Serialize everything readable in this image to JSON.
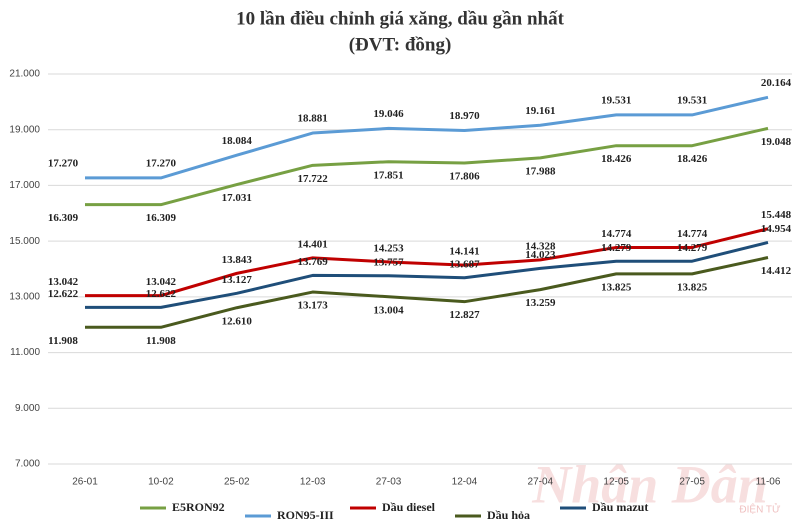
{
  "chart_data": {
    "type": "line",
    "title": "10 lần điều chỉnh giá xăng, dầu gần nhất",
    "subtitle": "(ĐVT: đồng)",
    "watermark": "Nhân Dân",
    "watermark_sub": "ĐIỆN TỬ",
    "categories": [
      "26-01",
      "10-02",
      "25-02",
      "12-03",
      "27-03",
      "12-04",
      "27-04",
      "12-05",
      "27-05",
      "11-06"
    ],
    "ylim": [
      7000,
      21000
    ],
    "yticks": [
      {
        "value": 7000,
        "label": "7.000"
      },
      {
        "value": 9000,
        "label": "9.000"
      },
      {
        "value": 11000,
        "label": "11.000"
      },
      {
        "value": 13000,
        "label": "13.000"
      },
      {
        "value": 15000,
        "label": "15.000"
      },
      {
        "value": 17000,
        "label": "17.000"
      },
      {
        "value": 19000,
        "label": "19.000"
      },
      {
        "value": 21000,
        "label": "21.000"
      }
    ],
    "grid": true,
    "legend": "bottom",
    "series": [
      {
        "name": "E5RON92",
        "color": "#77a043",
        "values": [
          16309,
          16309,
          17031,
          17722,
          17851,
          17806,
          17988,
          18426,
          18426,
          19048
        ],
        "value_labels": [
          "16.309",
          "16.309",
          "17.031",
          "17.722",
          "17.851",
          "17.806",
          "17.988",
          "18.426",
          "18.426",
          "19.048"
        ]
      },
      {
        "name": "RON95-III",
        "color": "#5b9bd5",
        "values": [
          17270,
          17270,
          18084,
          18881,
          19046,
          18970,
          19161,
          19531,
          19531,
          20164
        ],
        "value_labels": [
          "17.270",
          "17.270",
          "18.084",
          "18.881",
          "19.046",
          "18.970",
          "19.161",
          "19.531",
          "19.531",
          "20.164"
        ]
      },
      {
        "name": "Dầu diesel",
        "color": "#c00000",
        "values": [
          13042,
          13042,
          13843,
          14401,
          14253,
          14141,
          14328,
          14774,
          14774,
          15448
        ],
        "value_labels": [
          "13.042",
          "13.042",
          "13.843",
          "14.401",
          "14.253",
          "14.141",
          "14.328",
          "14.774",
          "14.774",
          "15.448"
        ]
      },
      {
        "name": "Dầu hỏa",
        "color": "#4a5a1e",
        "values": [
          11908,
          11908,
          12610,
          13173,
          13004,
          12827,
          13259,
          13825,
          13825,
          14412
        ],
        "value_labels": [
          "11.908",
          "11.908",
          "12.610",
          "13.173",
          "13.004",
          "12.827",
          "13.259",
          "13.825",
          "13.825",
          "14.412"
        ]
      },
      {
        "name": "Dầu mazut",
        "color": "#1f4e79",
        "values": [
          12622,
          12622,
          13127,
          13769,
          13757,
          13687,
          14023,
          14279,
          14279,
          14954
        ],
        "value_labels": [
          "12.622",
          "12.622",
          "13.127",
          "13.769",
          "13.757",
          "13.687",
          "14.023",
          "14.279",
          "14.279",
          "14.954"
        ]
      }
    ]
  }
}
